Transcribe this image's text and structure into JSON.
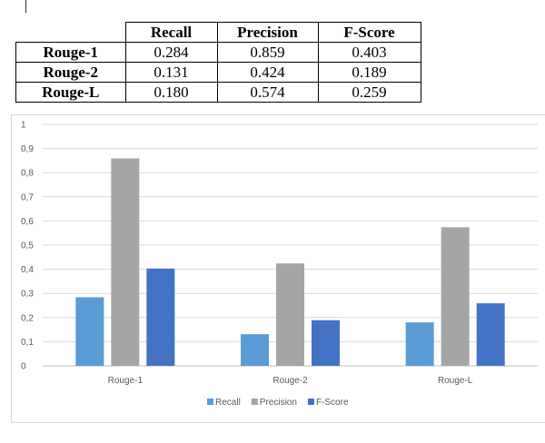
{
  "table": {
    "headers": [
      "",
      "Recall",
      "Precision",
      "F-Score"
    ],
    "rows": [
      [
        "Rouge-1",
        "0.284",
        "0.859",
        "0.403"
      ],
      [
        "Rouge-2",
        "0.131",
        "0.424",
        "0.189"
      ],
      [
        "Rouge-L",
        "0.180",
        "0.574",
        "0.259"
      ]
    ]
  },
  "chart_data": {
    "type": "bar",
    "categories": [
      "Rouge-1",
      "Rouge-2",
      "Rouge-L"
    ],
    "series": [
      {
        "name": "Recall",
        "values": [
          0.284,
          0.131,
          0.18
        ],
        "color": "#5b9bd5"
      },
      {
        "name": "Precision",
        "values": [
          0.859,
          0.424,
          0.574
        ],
        "color": "#a5a5a5"
      },
      {
        "name": "F-Score",
        "values": [
          0.403,
          0.189,
          0.259
        ],
        "color": "#4472c4"
      }
    ],
    "ylim": [
      0,
      1
    ],
    "yticks": [
      "0",
      "0,1",
      "0,2",
      "0,3",
      "0,4",
      "0,5",
      "0,6",
      "0,7",
      "0,8",
      "0,9",
      "1"
    ],
    "grid": true,
    "legend": "bottom"
  }
}
